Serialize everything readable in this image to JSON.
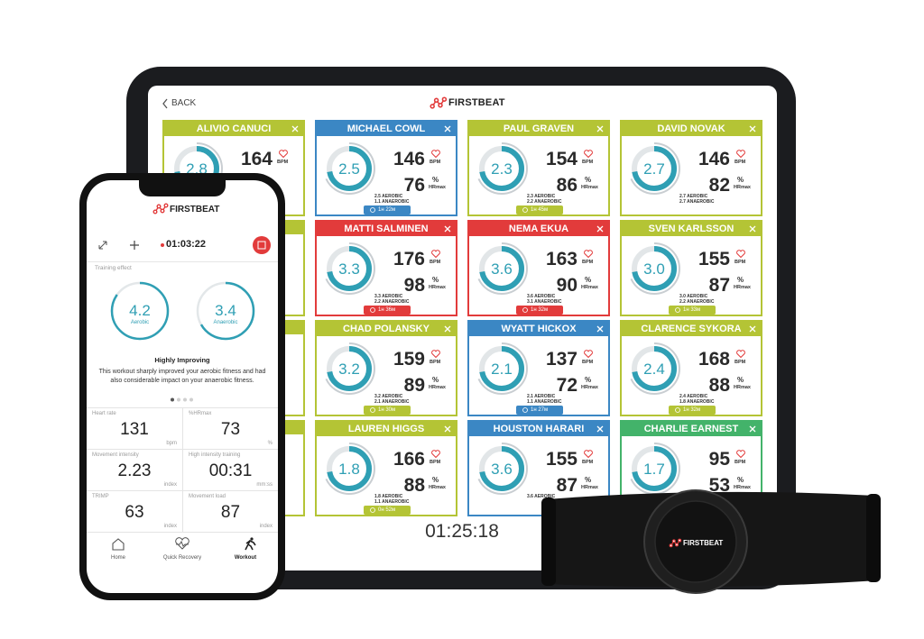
{
  "tablet": {
    "back": "BACK",
    "brand": "FIRSTBEAT",
    "timer": "01:25:18",
    "bpm_label": "BPM",
    "percent_label": "%",
    "hrmax_label": "HRmax",
    "tiles": [
      {
        "name": "ALIVIO CANUCI",
        "color": "#b4c435",
        "te": "2.8",
        "hr": "164"
      },
      {
        "name": "MICHAEL COWL",
        "color": "#3b87c4",
        "te": "2.5",
        "hr": "146",
        "hrmax": "76",
        "aerobic": "2.5 AEROBIC",
        "anaerobic": "1.1 ANAEROBIC",
        "time": "1н 22м"
      },
      {
        "name": "PAUL GRAVEN",
        "color": "#b4c435",
        "te": "2.3",
        "hr": "154",
        "hrmax": "86",
        "aerobic": "2.3 AEROBIC",
        "anaerobic": "2.2 ANAEROBIC",
        "time": "1н 45м"
      },
      {
        "name": "DAVID NOVAK",
        "color": "#b4c435",
        "te": "2.7",
        "hr": "146",
        "hrmax": "82",
        "aerobic": "2.7 AEROBIC",
        "anaerobic": "2.7 ANAEROBIC"
      },
      {
        "name": "MATTI SALMINEN",
        "color": "#e23b3b",
        "te": "3.3",
        "hr": "176",
        "hrmax": "98",
        "aerobic": "3.3 AEROBIC",
        "anaerobic": "2.2 ANAEROBIC",
        "time": "1н 36м"
      },
      {
        "name": "NEMA EKUA",
        "color": "#e23b3b",
        "te": "3.6",
        "hr": "163",
        "hrmax": "90",
        "aerobic": "3.6 AEROBIC",
        "anaerobic": "3.1 ANAEROBIC",
        "time": "1н 32м"
      },
      {
        "name": "SVEN KARLSSON",
        "color": "#b4c435",
        "te": "3.0",
        "hr": "155",
        "hrmax": "87",
        "aerobic": "3.0 AEROBIC",
        "anaerobic": "2.2 ANAEROBIC",
        "time": "1н 33м"
      },
      {
        "name": "CHAD POLANSKY",
        "color": "#b4c435",
        "te": "3.2",
        "hr": "159",
        "hrmax": "89",
        "aerobic": "3.2 AEROBIC",
        "anaerobic": "2.1 ANAEROBIC",
        "time": "1н 30м"
      },
      {
        "name": "WYATT HICKOX",
        "color": "#3b87c4",
        "te": "2.1",
        "hr": "137",
        "hrmax": "72",
        "aerobic": "2.1 AEROBIC",
        "anaerobic": "1.1 ANAEROBIC",
        "time": "1н 27м"
      },
      {
        "name": "CLARENCE SYKORA",
        "color": "#b4c435",
        "te": "2.4",
        "hr": "168",
        "hrmax": "88",
        "aerobic": "2.4 AEROBIC",
        "anaerobic": "1.8 ANAEROBIC",
        "time": "1н 32м"
      },
      {
        "name": "LAUREN HIGGS",
        "color": "#b4c435",
        "te": "1.8",
        "hr": "166",
        "hrmax": "88",
        "aerobic": "1.8 AEROBIC",
        "anaerobic": "1.1 ANAEROBIC",
        "time": "0н 52м"
      },
      {
        "name": "HOUSTON HARARI",
        "color": "#3b87c4",
        "te": "3.6",
        "hr": "155",
        "hrmax": "87",
        "aerobic": "3.6 AEROBIC"
      },
      {
        "name": "CHARLIE EARNEST",
        "color": "#43b36a",
        "te": "1.7",
        "hr": "95",
        "hrmax": "53",
        "aerobic": "1.7 AEROBIC",
        "anaerobic": "1.0 ANAEROBIC"
      }
    ]
  },
  "phone": {
    "brand": "FIRSTBEAT",
    "elapsed": "01:03:22",
    "training_effect_label": "Training effect",
    "aerobic": {
      "value": "4.2",
      "label": "Aerobic"
    },
    "anaerobic": {
      "value": "3.4",
      "label": "Anaerobic"
    },
    "status": "Highly Improving",
    "description": "This workout sharply improved your aerobic fitness and had also considerable impact on your anaerobic fitness.",
    "metrics": [
      {
        "label": "Heart rate",
        "value": "131",
        "unit": "bpm"
      },
      {
        "label": "%HRmax",
        "value": "73",
        "unit": "%"
      },
      {
        "label": "Movement intensity",
        "value": "2.23",
        "unit": "index"
      },
      {
        "label": "High intensity training",
        "value": "00:31",
        "unit": "mm:ss"
      },
      {
        "label": "TRIMP",
        "value": "63",
        "unit": "index"
      },
      {
        "label": "Movement load",
        "value": "87",
        "unit": "index"
      }
    ],
    "nav": [
      "Home",
      "Quick Recovery",
      "Workout"
    ]
  },
  "strap": {
    "brand": "FIRSTBEAT"
  }
}
